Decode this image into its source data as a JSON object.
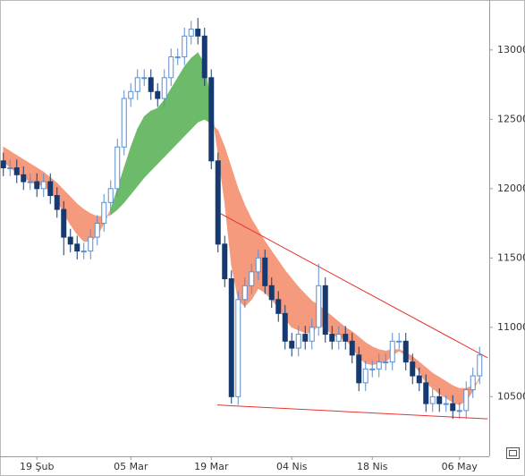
{
  "chart_data": {
    "type": "candlestick",
    "categories": [
      null,
      null,
      null,
      null,
      null,
      "19 Şub",
      null,
      null,
      null,
      null,
      null,
      null,
      null,
      null,
      null,
      null,
      null,
      null,
      null,
      "05 Mar",
      null,
      null,
      null,
      null,
      null,
      null,
      null,
      null,
      null,
      null,
      null,
      "19 Mar",
      null,
      null,
      null,
      null,
      null,
      null,
      null,
      null,
      null,
      null,
      null,
      "04 Nis",
      null,
      null,
      null,
      null,
      null,
      null,
      null,
      null,
      null,
      null,
      null,
      "18 Nis",
      null,
      null,
      null,
      null,
      null,
      null,
      null,
      null,
      null,
      null,
      null,
      null,
      "06 May",
      null,
      null,
      null
    ],
    "open": [
      12200,
      12150,
      12150,
      12100,
      12050,
      12050,
      12000,
      12050,
      11950,
      11850,
      11650,
      11600,
      11550,
      11550,
      11650,
      11750,
      11900,
      12000,
      12300,
      12650,
      12700,
      12800,
      12800,
      12700,
      12650,
      12800,
      12950,
      12950,
      13100,
      13150,
      13100,
      12800,
      12200,
      11600,
      11350,
      10500,
      11200,
      11300,
      11400,
      11500,
      11300,
      11200,
      11100,
      10900,
      10850,
      10950,
      10900,
      11000,
      11300,
      10950,
      10900,
      10950,
      10900,
      10800,
      10600,
      10700,
      10700,
      10750,
      10750,
      10900,
      10900,
      10750,
      10650,
      10600,
      10450,
      10500,
      10450,
      10450,
      10400,
      10400,
      10550,
      10650
    ],
    "high": [
      12260,
      12210,
      12210,
      12160,
      12110,
      12110,
      12110,
      12110,
      12010,
      11910,
      11710,
      11660,
      11610,
      11710,
      11810,
      11960,
      12060,
      12360,
      12710,
      12760,
      12860,
      12860,
      12860,
      12760,
      12860,
      13010,
      13010,
      13160,
      13210,
      13230,
      13160,
      12860,
      12260,
      11660,
      11410,
      11260,
      11360,
      11460,
      11560,
      11560,
      11360,
      11260,
      11160,
      10960,
      11010,
      11010,
      11060,
      11460,
      11360,
      11010,
      11010,
      11010,
      10960,
      10860,
      10760,
      10760,
      10810,
      10810,
      10960,
      10960,
      10960,
      10810,
      10710,
      10660,
      10560,
      10560,
      10510,
      10510,
      10460,
      10610,
      10710,
      10860
    ],
    "low": [
      12090,
      12090,
      12040,
      11990,
      11990,
      11940,
      11940,
      11890,
      11790,
      11520,
      11540,
      11490,
      11490,
      11490,
      11590,
      11690,
      11840,
      11940,
      12240,
      12590,
      12640,
      12740,
      12640,
      12590,
      12590,
      12740,
      12890,
      12890,
      13040,
      13040,
      12740,
      12140,
      11540,
      11290,
      10450,
      10440,
      11140,
      11240,
      11340,
      11240,
      11140,
      11040,
      10840,
      10790,
      10790,
      10840,
      10840,
      10940,
      10890,
      10840,
      10840,
      10840,
      10740,
      10540,
      10540,
      10640,
      10640,
      10690,
      10690,
      10840,
      10690,
      10590,
      10540,
      10390,
      10390,
      10390,
      10390,
      10340,
      10340,
      10340,
      10490,
      10590
    ],
    "close": [
      12150,
      12150,
      12100,
      12050,
      12050,
      12000,
      12050,
      11950,
      11850,
      11650,
      11600,
      11550,
      11550,
      11650,
      11750,
      11900,
      12000,
      12300,
      12650,
      12700,
      12800,
      12800,
      12700,
      12650,
      12800,
      12950,
      12950,
      13100,
      13150,
      13100,
      12800,
      12200,
      11600,
      11350,
      10500,
      11200,
      11300,
      11400,
      11500,
      11300,
      11200,
      11100,
      10900,
      10850,
      10950,
      10900,
      11000,
      11300,
      10950,
      10900,
      10950,
      10900,
      10800,
      10600,
      10700,
      10700,
      10750,
      10750,
      10900,
      10900,
      10750,
      10650,
      10600,
      10450,
      10500,
      10450,
      10450,
      10400,
      10400,
      10550,
      10650,
      10800
    ],
    "up_color": "#5b8ed1",
    "down_color": "#163a70",
    "ma_fast": [
      12200,
      12150,
      12120,
      12080,
      12050,
      12030,
      12020,
      11980,
      11920,
      11820,
      11740,
      11670,
      11620,
      11620,
      11660,
      11750,
      11850,
      12000,
      12150,
      12300,
      12430,
      12520,
      12560,
      12580,
      12640,
      12720,
      12800,
      12880,
      12940,
      12980,
      12900,
      12600,
      12250,
      11900,
      11450,
      11200,
      11150,
      11200,
      11280,
      11250,
      11200,
      11140,
      11060,
      11000,
      10980,
      10960,
      10960,
      11020,
      10990,
      10950,
      10930,
      10910,
      10860,
      10780,
      10740,
      10730,
      10740,
      10750,
      10800,
      10830,
      10800,
      10740,
      10680,
      10600,
      10560,
      10520,
      10490,
      10460,
      10440,
      10470,
      10540,
      10640
    ],
    "ma_slow": [
      12300,
      12270,
      12240,
      12210,
      12180,
      12150,
      12120,
      12080,
      12040,
      11990,
      11940,
      11890,
      11850,
      11820,
      11800,
      11800,
      11810,
      11850,
      11900,
      11960,
      12020,
      12080,
      12130,
      12180,
      12230,
      12280,
      12330,
      12380,
      12430,
      12480,
      12500,
      12470,
      12420,
      12300,
      12150,
      12000,
      11880,
      11780,
      11700,
      11620,
      11550,
      11480,
      11410,
      11350,
      11290,
      11240,
      11190,
      11160,
      11120,
      11080,
      11040,
      11000,
      10970,
      10930,
      10890,
      10860,
      10840,
      10830,
      10840,
      10840,
      10820,
      10790,
      10750,
      10710,
      10670,
      10640,
      10610,
      10580,
      10560,
      10560,
      10580,
      10620
    ],
    "ribbon_up_color": "#6dbb6a",
    "ribbon_down_color": "#f59a7c",
    "trendlines": [
      {
        "start": [
          32,
          11830
        ],
        "end": [
          72.2,
          10780
        ],
        "color": "#e8322d"
      },
      {
        "start": [
          31.9,
          10440
        ],
        "end": [
          72.2,
          10340
        ],
        "color": "#e8322d"
      }
    ],
    "ylim": [
      10070,
      13360
    ],
    "yticks": [
      10500,
      11000,
      11500,
      12000,
      12500,
      13000
    ]
  }
}
